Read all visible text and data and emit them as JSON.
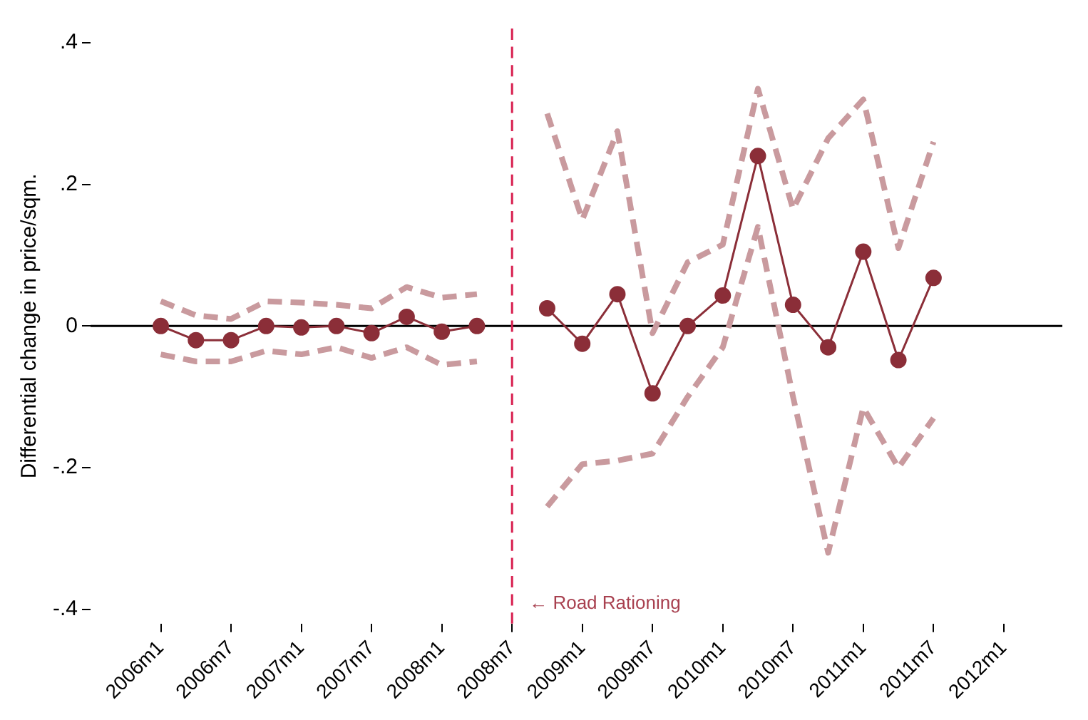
{
  "chart_data": {
    "type": "line",
    "ylabel": "Differential change in price/sqm.",
    "x": [
      "2006-01",
      "2006-04",
      "2006-07",
      "2006-10",
      "2007-01",
      "2007-04",
      "2007-07",
      "2007-10",
      "2008-01",
      "2008-04",
      "2008-07",
      "2008-10",
      "2009-01",
      "2009-04",
      "2009-07",
      "2009-10",
      "2010-01",
      "2010-04",
      "2010-07",
      "2010-10",
      "2011-01",
      "2011-04",
      "2011-07"
    ],
    "series": [
      {
        "color": "#c99a9e",
        "line_style": "dashed",
        "marker": "none",
        "values": [
          0.035,
          0.015,
          0.01,
          0.035,
          0.033,
          0.03,
          0.025,
          0.055,
          0.04,
          0.045,
          null,
          0.3,
          0.15,
          0.275,
          -0.01,
          0.09,
          0.115,
          0.335,
          0.165,
          0.265,
          0.32,
          0.11,
          0.26
        ]
      },
      {
        "color": "#c99a9e",
        "line_style": "dashed",
        "marker": "none",
        "values": [
          -0.04,
          -0.05,
          -0.05,
          -0.035,
          -0.04,
          -0.03,
          -0.045,
          -0.03,
          -0.055,
          -0.05,
          null,
          -0.255,
          -0.195,
          -0.19,
          -0.18,
          -0.1,
          -0.03,
          0.14,
          -0.1,
          -0.32,
          -0.115,
          -0.2,
          -0.13
        ]
      },
      {
        "color": "#8b2e38",
        "line_style": "solid",
        "marker": "circle",
        "values": [
          0,
          -0.02,
          -0.02,
          0,
          -0.002,
          0,
          -0.01,
          0.013,
          -0.008,
          0,
          null,
          0.025,
          -0.025,
          0.045,
          -0.095,
          0,
          0.043,
          0.24,
          0.03,
          -0.03,
          0.105,
          -0.048,
          0.068
        ]
      }
    ],
    "xlim": [
      "2005-07",
      "2012-06"
    ],
    "xticks": [
      {
        "value": "2006-01",
        "label": "2006m1"
      },
      {
        "value": "2006-07",
        "label": "2006m7"
      },
      {
        "value": "2007-01",
        "label": "2007m1"
      },
      {
        "value": "2007-07",
        "label": "2007m7"
      },
      {
        "value": "2008-01",
        "label": "2008m1"
      },
      {
        "value": "2008-07",
        "label": "2008m7"
      },
      {
        "value": "2009-01",
        "label": "2009m1"
      },
      {
        "value": "2009-07",
        "label": "2009m7"
      },
      {
        "value": "2010-01",
        "label": "2010m1"
      },
      {
        "value": "2010-07",
        "label": "2010m7"
      },
      {
        "value": "2011-01",
        "label": "2011m1"
      },
      {
        "value": "2011-07",
        "label": "2011m7"
      },
      {
        "value": "2012-01",
        "label": "2012m1"
      }
    ],
    "ylim": [
      -0.42,
      0.42
    ],
    "yticks": [
      {
        "value": -0.4,
        "label": "-.4"
      },
      {
        "value": -0.2,
        "label": "-.2"
      },
      0,
      {
        "value": 0.2,
        "label": ".2"
      },
      {
        "value": 0.4,
        "label": ".4"
      }
    ],
    "ref_lines": [
      {
        "axis": "y",
        "value": 0,
        "color": "#000000",
        "line_style": "solid"
      },
      {
        "axis": "x",
        "value": "2008-07",
        "label": "← Road Rationing",
        "color": "#d81f4f",
        "line_style": "dashed"
      }
    ]
  }
}
